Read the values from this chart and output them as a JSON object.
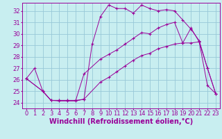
{
  "bg_color": "#c8eef0",
  "grid_color": "#98c8d8",
  "line_color": "#990099",
  "xlabel": "Windchill (Refroidissement éolien,°C)",
  "xlim": [
    -0.5,
    23.5
  ],
  "ylim": [
    23.5,
    32.7
  ],
  "yticks": [
    24,
    25,
    26,
    27,
    28,
    29,
    30,
    31,
    32
  ],
  "xticks": [
    0,
    1,
    2,
    3,
    4,
    5,
    6,
    7,
    8,
    9,
    10,
    11,
    12,
    13,
    14,
    15,
    16,
    17,
    18,
    19,
    20,
    21,
    22,
    23
  ],
  "line1_x": [
    0,
    1,
    2,
    3,
    4,
    5,
    6,
    7,
    8,
    9,
    10,
    11,
    12,
    13,
    14,
    15,
    16,
    17,
    18,
    19,
    20,
    21,
    22,
    23
  ],
  "line1_y": [
    26.1,
    27.0,
    25.0,
    24.2,
    24.15,
    24.15,
    24.15,
    24.3,
    29.1,
    31.5,
    32.5,
    32.2,
    32.2,
    31.8,
    32.5,
    32.2,
    32.0,
    32.1,
    32.0,
    31.2,
    30.4,
    29.4,
    27.0,
    24.8
  ],
  "line2_x": [
    0,
    2,
    3,
    4,
    5,
    6,
    7,
    9,
    10,
    11,
    12,
    13,
    14,
    15,
    16,
    17,
    18,
    19,
    20,
    21,
    22,
    23
  ],
  "line2_y": [
    26.1,
    25.0,
    24.2,
    24.2,
    24.2,
    24.2,
    26.5,
    27.8,
    28.2,
    28.6,
    29.1,
    29.6,
    30.1,
    30.0,
    30.5,
    30.8,
    31.0,
    29.2,
    30.5,
    29.3,
    25.5,
    24.8
  ],
  "line3_x": [
    0,
    2,
    3,
    4,
    5,
    6,
    7,
    9,
    10,
    11,
    12,
    13,
    14,
    15,
    16,
    17,
    18,
    19,
    20,
    21,
    22,
    23
  ],
  "line3_y": [
    26.1,
    25.0,
    24.2,
    24.2,
    24.2,
    24.2,
    24.3,
    25.8,
    26.2,
    26.7,
    27.2,
    27.7,
    28.1,
    28.3,
    28.7,
    28.9,
    29.1,
    29.2,
    29.2,
    29.3,
    27.0,
    24.8
  ],
  "tick_label_size": 6,
  "xlabel_size": 7
}
